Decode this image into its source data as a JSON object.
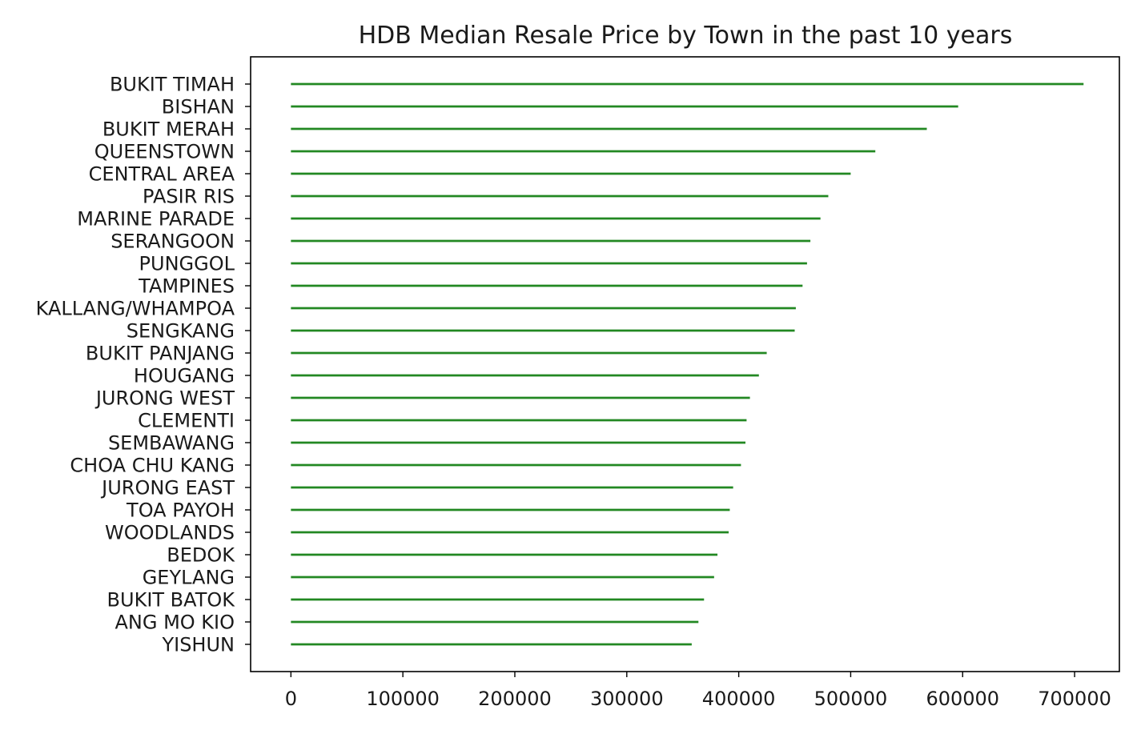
{
  "chart_data": {
    "type": "bar",
    "orientation": "horizontal",
    "title": "HDB Median Resale Price by Town in the past 10 years",
    "xlabel": "",
    "ylabel": "",
    "color": "#228822",
    "grid": false,
    "xlim": [
      -36000,
      740000
    ],
    "xticks": [
      0,
      100000,
      200000,
      300000,
      400000,
      500000,
      600000,
      700000
    ],
    "categories": [
      "BUKIT TIMAH",
      "BISHAN",
      "BUKIT MERAH",
      "QUEENSTOWN",
      "CENTRAL AREA",
      "PASIR RIS",
      "MARINE PARADE",
      "SERANGOON",
      "PUNGGOL",
      "TAMPINES",
      "KALLANG/WHAMPOA",
      "SENGKANG",
      "BUKIT PANJANG",
      "HOUGANG",
      "JURONG WEST",
      "CLEMENTI",
      "SEMBAWANG",
      "CHOA CHU KANG",
      "JURONG EAST",
      "TOA PAYOH",
      "WOODLANDS",
      "BEDOK",
      "GEYLANG",
      "BUKIT BATOK",
      "ANG MO KIO",
      "YISHUN"
    ],
    "values": [
      708000,
      596000,
      568000,
      522000,
      500000,
      480000,
      473000,
      464000,
      461000,
      457000,
      451000,
      450000,
      425000,
      418000,
      410000,
      407000,
      406000,
      402000,
      395000,
      392000,
      391000,
      381000,
      378000,
      369000,
      364000,
      358000
    ]
  }
}
